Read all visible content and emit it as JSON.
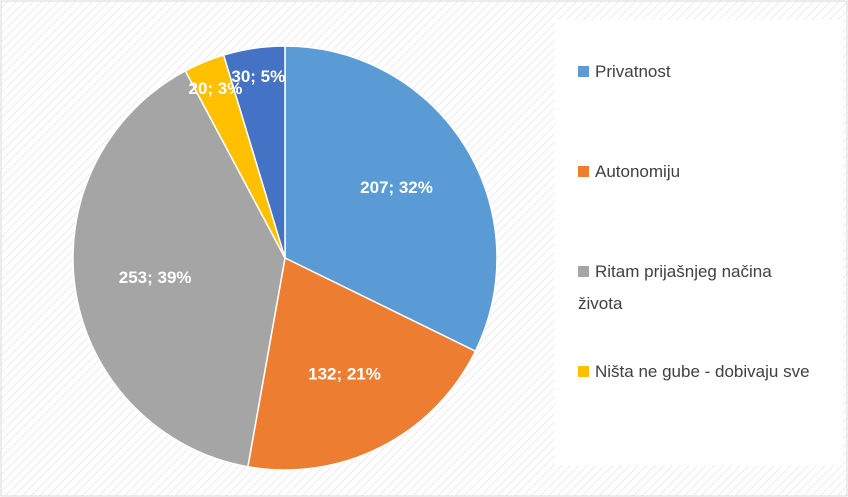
{
  "chart_data": {
    "type": "pie",
    "categories": [
      "Privatnost",
      "Autonomiju",
      "Ritam prijašnjeg načina života",
      "Ništa ne gube - dobivaju sve",
      null
    ],
    "values": [
      207,
      132,
      253,
      20,
      30
    ],
    "value_labels": [
      "207; 32%",
      "132; 21%",
      "253; 39%",
      "20; 3%",
      "30; 5%"
    ],
    "colors": [
      "#5b9bd5",
      "#ed7d31",
      "#a5a5a5",
      "#ffc000",
      "#4472c4"
    ],
    "legend": "right"
  }
}
